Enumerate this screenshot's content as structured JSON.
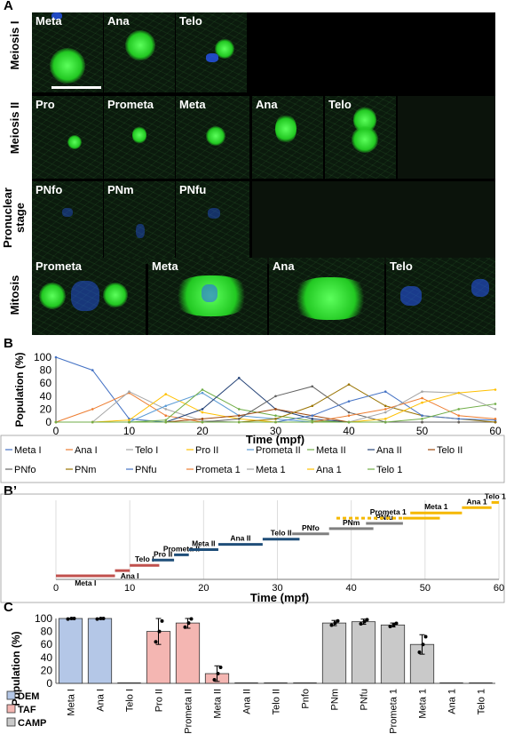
{
  "panel_a": {
    "letter": "A",
    "rows": [
      {
        "label": "Meiosis I",
        "stages": [
          "Meta",
          "Ana",
          "Telo"
        ]
      },
      {
        "label": "Meiosis II",
        "stages": [
          "Pro",
          "Prometa",
          "Meta",
          "Ana",
          "Telo"
        ]
      },
      {
        "label_line1": "Pronuclear",
        "label_line2": "stage",
        "stages": [
          "PNfo",
          "PNm",
          "PNfu"
        ]
      },
      {
        "label": "Mitosis",
        "stages": [
          "Prometa",
          "Meta",
          "Ana",
          "Telo"
        ]
      }
    ]
  },
  "panel_b": {
    "letter": "B",
    "ylabel": "Population (%)",
    "xlabel": "Time (mpf)",
    "yticks": [
      "0",
      "20",
      "40",
      "60",
      "80",
      "100"
    ],
    "xticks": [
      "0",
      "10",
      "20",
      "30",
      "40",
      "50",
      "60"
    ],
    "legend": [
      "Meta I",
      "Ana I",
      "Telo I",
      "Pro II",
      "Prometa II",
      "Meta II",
      "Ana II",
      "Telo II",
      "PNfo",
      "PNm",
      "PNfu",
      "Prometa 1",
      "Meta 1",
      "Ana 1",
      "Telo 1"
    ]
  },
  "panel_b2": {
    "letter": "B’",
    "xlabel": "Time (mpf)",
    "xticks": [
      "0",
      "10",
      "20",
      "30",
      "40",
      "50",
      "60"
    ],
    "bar_labels": [
      "Meta I",
      "Ana I",
      "Telo I",
      "Pro II",
      "Prometa II",
      "Meta II",
      "Ana II",
      "Telo II",
      "PNfo",
      "PNm",
      "PNfu",
      "Prometa 1",
      "Meta 1",
      "Ana 1",
      "Telo 1"
    ]
  },
  "panel_c": {
    "letter": "C",
    "ylabel": "Population (%)",
    "yticks": [
      "0",
      "20",
      "40",
      "60",
      "80",
      "100"
    ],
    "categories": [
      "Meta I",
      "Ana I",
      "Telo I",
      "Pro II",
      "Prometa II",
      "Meta II",
      "Ana II",
      "Telo II",
      "Pnfo",
      "PNm",
      "PNfu",
      "Prometa 1",
      "Meta 1",
      "Ana 1",
      "Telo 1"
    ],
    "legend": [
      "DEM",
      "TAF",
      "CAMP"
    ]
  },
  "colors": {
    "blue": "#4472c4",
    "orange": "#ed7d31",
    "gray": "#a5a5a5",
    "yellow": "#ffc000",
    "lightblue": "#5b9bd5",
    "green": "#70ad47",
    "darkblue": "#264478",
    "darkred": "#9e480e",
    "darkgray": "#636363",
    "gold": "#997300",
    "dem": "#b4c7e7",
    "taf": "#f4b6b2",
    "camp": "#c9c9c9",
    "b2_red": "#c0504d",
    "b2_blue": "#1f4e79",
    "b2_gray": "#808080",
    "b2_yellow": "#f5b800"
  },
  "chart_data": [
    {
      "type": "line",
      "x": [
        0,
        5,
        10,
        15,
        20,
        25,
        30,
        35,
        40,
        45,
        50,
        55,
        60
      ],
      "xlabel": "Time (mpf)",
      "ylabel": "Population (%)",
      "xlim": [
        0,
        60
      ],
      "ylim": [
        0,
        100
      ],
      "grid": false,
      "legend_position": "bottom",
      "series": [
        {
          "name": "Meta I",
          "values": [
            100,
            80,
            5,
            0,
            0,
            0,
            0,
            0,
            0,
            0,
            0,
            0,
            0
          ]
        },
        {
          "name": "Ana I",
          "values": [
            0,
            20,
            45,
            10,
            0,
            0,
            0,
            0,
            0,
            0,
            0,
            0,
            0
          ]
        },
        {
          "name": "Telo I",
          "values": [
            0,
            0,
            47,
            20,
            2,
            0,
            0,
            0,
            0,
            0,
            0,
            0,
            0
          ]
        },
        {
          "name": "Pro II",
          "values": [
            0,
            0,
            3,
            43,
            15,
            5,
            0,
            0,
            0,
            0,
            0,
            0,
            0
          ]
        },
        {
          "name": "Prometa II",
          "values": [
            0,
            0,
            0,
            25,
            45,
            10,
            5,
            0,
            0,
            0,
            0,
            0,
            0
          ]
        },
        {
          "name": "Meta II",
          "values": [
            0,
            0,
            0,
            3,
            50,
            20,
            10,
            2,
            0,
            0,
            0,
            0,
            0
          ]
        },
        {
          "name": "Ana II",
          "values": [
            0,
            0,
            0,
            0,
            20,
            68,
            20,
            5,
            0,
            0,
            0,
            0,
            0
          ]
        },
        {
          "name": "Telo II",
          "values": [
            0,
            0,
            0,
            0,
            5,
            10,
            20,
            10,
            0,
            0,
            0,
            0,
            0
          ]
        },
        {
          "name": "PNfo",
          "values": [
            0,
            0,
            0,
            0,
            0,
            5,
            40,
            55,
            15,
            0,
            0,
            0,
            0
          ]
        },
        {
          "name": "PNm",
          "values": [
            0,
            0,
            0,
            0,
            0,
            0,
            5,
            25,
            58,
            25,
            10,
            5,
            0
          ]
        },
        {
          "name": "PNfu",
          "values": [
            0,
            0,
            0,
            0,
            0,
            0,
            0,
            10,
            32,
            47,
            10,
            5,
            3
          ]
        },
        {
          "name": "Prometa 1",
          "values": [
            0,
            0,
            0,
            0,
            0,
            0,
            0,
            0,
            10,
            20,
            37,
            10,
            5
          ]
        },
        {
          "name": "Meta 1",
          "values": [
            0,
            0,
            0,
            0,
            0,
            0,
            0,
            0,
            0,
            15,
            47,
            45,
            20
          ]
        },
        {
          "name": "Ana 1",
          "values": [
            0,
            0,
            0,
            0,
            0,
            0,
            0,
            0,
            0,
            5,
            30,
            45,
            50
          ]
        },
        {
          "name": "Telo 1",
          "values": [
            0,
            0,
            0,
            0,
            0,
            0,
            0,
            0,
            0,
            0,
            5,
            20,
            28
          ]
        }
      ]
    },
    {
      "type": "bar",
      "subtype": "timeline",
      "xlabel": "Time (mpf)",
      "xlim": [
        0,
        60
      ],
      "series": [
        {
          "name": "Meta I",
          "start": 0,
          "end": 8,
          "color": "b2_red"
        },
        {
          "name": "Ana I",
          "start": 8,
          "end": 10,
          "color": "b2_red"
        },
        {
          "name": "Telo I",
          "start": 10,
          "end": 14,
          "color": "b2_red"
        },
        {
          "name": "Pro II",
          "start": 13,
          "end": 16,
          "color": "b2_blue"
        },
        {
          "name": "Prometa II",
          "start": 16,
          "end": 18,
          "color": "b2_blue"
        },
        {
          "name": "Meta II",
          "start": 18,
          "end": 22,
          "color": "b2_blue"
        },
        {
          "name": "Ana II",
          "start": 22,
          "end": 28,
          "color": "b2_blue"
        },
        {
          "name": "Telo II",
          "start": 28,
          "end": 33,
          "color": "b2_blue"
        },
        {
          "name": "PNfo",
          "start": 32,
          "end": 37,
          "color": "b2_gray"
        },
        {
          "name": "PNm",
          "start": 37,
          "end": 43,
          "color": "b2_gray"
        },
        {
          "name": "PNfu",
          "start": 42,
          "end": 47,
          "color": "b2_gray"
        },
        {
          "name": "Prometa 1",
          "start": 38,
          "end": 52,
          "color": "b2_yellow",
          "dashed_until": 47
        },
        {
          "name": "Meta 1",
          "start": 48,
          "end": 55,
          "color": "b2_yellow"
        },
        {
          "name": "Ana 1",
          "start": 55,
          "end": 59,
          "color": "b2_yellow"
        },
        {
          "name": "Telo 1",
          "start": 59,
          "end": 60,
          "color": "b2_yellow"
        }
      ]
    },
    {
      "type": "bar",
      "ylabel": "Population (%)",
      "ylim": [
        0,
        100
      ],
      "categories": [
        "Meta I",
        "Ana I",
        "Telo I",
        "Pro II",
        "Prometa II",
        "Meta II",
        "Ana II",
        "Telo II",
        "Pnfo",
        "PNm",
        "PNfu",
        "Prometa 1",
        "Meta 1",
        "Ana 1",
        "Telo 1"
      ],
      "values": [
        100,
        100,
        0,
        80,
        93,
        15,
        0,
        0,
        0,
        93,
        95,
        90,
        60,
        0,
        0
      ],
      "errors": [
        1,
        1,
        0,
        20,
        8,
        12,
        0,
        0,
        0,
        4,
        4,
        3,
        15,
        0,
        0
      ],
      "groups": [
        "DEM",
        "DEM",
        "DEM",
        "TAF",
        "TAF",
        "TAF",
        "TAF",
        "TAF",
        "CAMP",
        "CAMP",
        "CAMP",
        "CAMP",
        "CAMP",
        "CAMP",
        "CAMP"
      ],
      "legend": [
        "DEM",
        "TAF",
        "CAMP"
      ],
      "legend_position": "bottom-left"
    }
  ]
}
